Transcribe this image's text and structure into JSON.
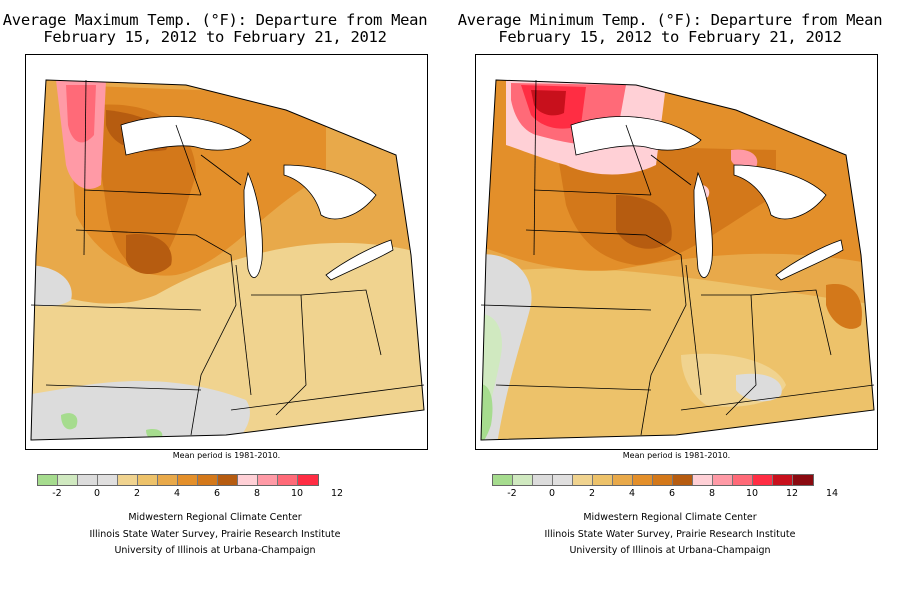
{
  "maps": [
    {
      "title_line1": "Average Maximum Temp. (°F): Departure from Mean",
      "title_line2": "February 15, 2012 to February 21, 2012",
      "mean_note": "Mean period is 1981-2010.",
      "legend": {
        "colors": [
          "#a6dc8e",
          "#d0e9c0",
          "#dcdcdc",
          "#e0dfdf",
          "#f0d38f",
          "#edc26a",
          "#e8a94a",
          "#e38f2a",
          "#d3781a",
          "#b65c10",
          "#ffd0d6",
          "#ff9aa6",
          "#ff6a78",
          "#ff2d43"
        ],
        "tick_labels": [
          "-2",
          "0",
          "2",
          "4",
          "6",
          "8",
          "10",
          "12"
        ]
      },
      "credits": [
        "Midwestern Regional Climate Center",
        "Illinois State Water Survey, Prairie Research Institute",
        "University of Illinois at Urbana-Champaign"
      ]
    },
    {
      "title_line1": "Average Minimum Temp. (°F): Departure from Mean",
      "title_line2": "February 15, 2012 to February 21, 2012",
      "mean_note": "Mean period is 1981-2010.",
      "legend": {
        "colors": [
          "#a6dc8e",
          "#d0e9c0",
          "#dcdcdc",
          "#e0dfdf",
          "#f0d38f",
          "#edc26a",
          "#e8a94a",
          "#e38f2a",
          "#d3781a",
          "#b65c10",
          "#ffd0d6",
          "#ff9aa6",
          "#ff6a78",
          "#ff2d43",
          "#c8101c",
          "#8a0a10"
        ],
        "tick_labels": [
          "-2",
          "0",
          "2",
          "4",
          "6",
          "8",
          "10",
          "12",
          "14"
        ]
      },
      "credits": [
        "Midwestern Regional Climate Center",
        "Illinois State Water Survey, Prairie Research Institute",
        "University of Illinois at Urbana-Champaign"
      ]
    }
  ]
}
